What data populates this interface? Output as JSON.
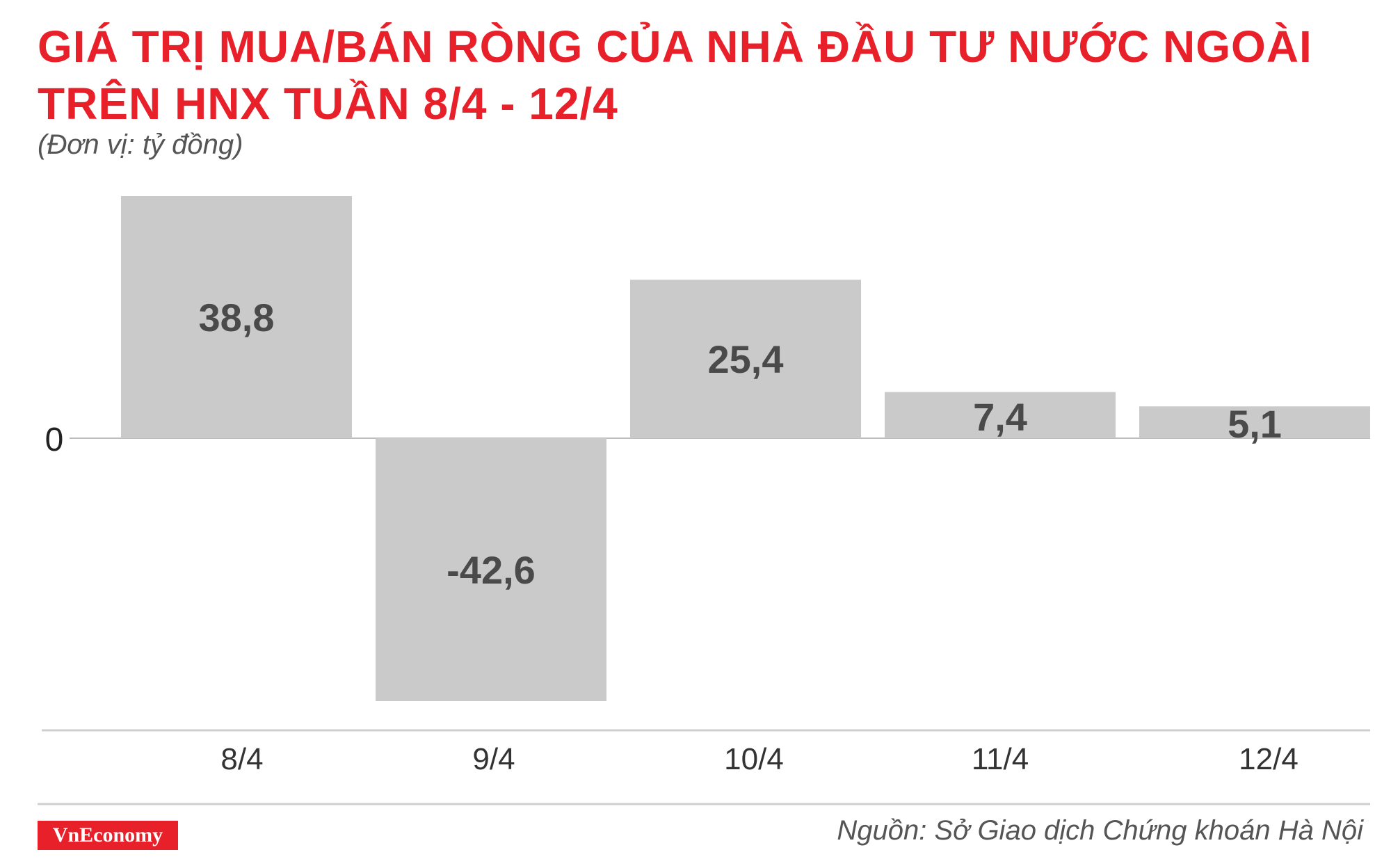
{
  "header": {
    "title_line1": "GIÁ TRỊ MUA/BÁN RÒNG CỦA NHÀ ĐẦU TƯ NƯỚC NGOÀI",
    "title_line2": "TRÊN HNX TUẦN 8/4 - 12/4",
    "unit": "(Đơn vị: tỷ đồng)"
  },
  "chart_data": {
    "type": "bar",
    "title": "GIÁ TRỊ MUA/BÁN RÒNG CỦA NHÀ ĐẦU TƯ NƯỚC NGOÀI TRÊN HNX TUẦN 8/4 - 12/4",
    "subtitle": "(Đơn vị: tỷ đồng)",
    "categories": [
      "8/4",
      "9/4",
      "10/4",
      "11/4",
      "12/4"
    ],
    "values": [
      38.8,
      -42.6,
      25.4,
      7.4,
      5.1
    ],
    "data_labels": [
      "38,8",
      "-42,6",
      "25,4",
      "7,4",
      "5,1"
    ],
    "zero_label": "0",
    "ylim": [
      -42.6,
      38.8
    ],
    "grid": false,
    "legend": "none",
    "bar_color": "#cbcacb"
  },
  "footer": {
    "logo": "VnEconomy",
    "source": "Nguồn: Sở Giao dịch Chứng khoán Hà Nội"
  },
  "colors": {
    "title": "#e8202a",
    "logo_bg": "#e8202a"
  }
}
